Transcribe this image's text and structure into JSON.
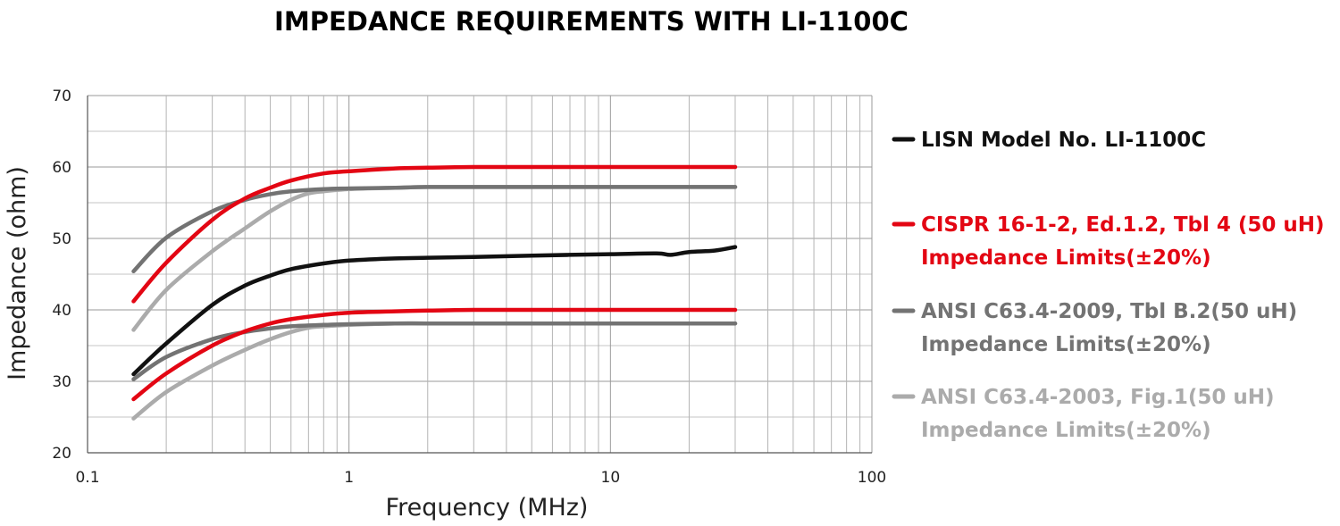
{
  "chart_data": {
    "type": "line",
    "title": "IMPEDANCE REQUIREMENTS WITH LI-1100C",
    "xlabel": "Frequency (MHz)",
    "ylabel": "Impedance (ohm)",
    "x_scale": "log",
    "xlim": [
      0.1,
      100
    ],
    "ylim": [
      20,
      70
    ],
    "x_ticks": [
      "0.1",
      "1",
      "10",
      "100"
    ],
    "y_ticks": [
      "20",
      "30",
      "40",
      "50",
      "60",
      "70"
    ],
    "grid": true,
    "legend_position": "right",
    "legend": [
      {
        "lines": [
          "LISN Model No. LI-1100C"
        ],
        "color": "#111111"
      },
      {
        "lines": [
          "CISPR 16-1-2, Ed.1.2, Tbl 4 (50 uH)",
          "Impedance Limits(±20%)"
        ],
        "color": "#e30613"
      },
      {
        "lines": [
          "ANSI C63.4-2009, Tbl B.2(50 uH)",
          "Impedance Limits(±20%)"
        ],
        "color": "#737373"
      },
      {
        "lines": [
          "ANSI C63.4-2003, Fig.1(50 uH)",
          "Impedance Limits(±20%)"
        ],
        "color": "#ababab"
      }
    ],
    "series": [
      {
        "group": 0,
        "color": "#111111",
        "x": [
          0.15,
          0.2,
          0.3,
          0.4,
          0.5,
          0.6,
          0.8,
          1,
          1.5,
          2,
          3,
          5,
          10,
          15,
          17,
          20,
          25,
          30
        ],
        "y": [
          31,
          35.3,
          40.7,
          43.4,
          44.8,
          45.7,
          46.5,
          46.9,
          47.2,
          47.3,
          47.4,
          47.6,
          47.8,
          47.9,
          47.7,
          48.1,
          48.3,
          48.8
        ]
      },
      {
        "group": 1,
        "color": "#e30613",
        "x": [
          0.15,
          0.2,
          0.3,
          0.4,
          0.5,
          0.6,
          0.8,
          1,
          1.5,
          2,
          3,
          5,
          10,
          30
        ],
        "y": [
          41.2,
          46.6,
          52.6,
          55.6,
          57.1,
          58.1,
          59.1,
          59.4,
          59.8,
          59.9,
          60,
          60,
          60,
          60
        ]
      },
      {
        "group": 1,
        "color": "#e30613",
        "x": [
          0.15,
          0.2,
          0.3,
          0.4,
          0.5,
          0.6,
          0.8,
          1,
          1.5,
          2,
          3,
          5,
          10,
          30
        ],
        "y": [
          27.5,
          31.1,
          35,
          37,
          38.1,
          38.7,
          39.3,
          39.6,
          39.8,
          39.9,
          40,
          40,
          40,
          40
        ]
      },
      {
        "group": 2,
        "color": "#737373",
        "x": [
          0.15,
          0.2,
          0.3,
          0.4,
          0.5,
          0.6,
          0.8,
          1,
          1.5,
          2,
          3,
          5,
          10,
          30
        ],
        "y": [
          45.4,
          50.1,
          53.8,
          55.4,
          56.2,
          56.6,
          56.9,
          57,
          57.1,
          57.2,
          57.2,
          57.2,
          57.2,
          57.2
        ]
      },
      {
        "group": 2,
        "color": "#737373",
        "x": [
          0.15,
          0.2,
          0.3,
          0.4,
          0.5,
          0.6,
          0.8,
          1,
          1.5,
          2,
          3,
          5,
          10,
          30
        ],
        "y": [
          30.3,
          33.4,
          35.9,
          36.9,
          37.4,
          37.7,
          37.9,
          38,
          38.1,
          38.1,
          38.1,
          38.1,
          38.1,
          38.1
        ]
      },
      {
        "group": 3,
        "color": "#ababab",
        "x": [
          0.15,
          0.2,
          0.3,
          0.4,
          0.5,
          0.6,
          0.7,
          0.8,
          1,
          1.5,
          2,
          3,
          5,
          10,
          30
        ],
        "y": [
          37.2,
          42.8,
          48.2,
          51.4,
          53.8,
          55.4,
          56.3,
          56.6,
          56.9,
          57.1,
          57.2,
          57.2,
          57.2,
          57.2,
          57.2
        ]
      },
      {
        "group": 3,
        "color": "#ababab",
        "x": [
          0.15,
          0.2,
          0.3,
          0.4,
          0.5,
          0.6,
          0.7,
          0.8,
          1,
          1.5,
          2,
          3,
          5,
          10,
          30
        ],
        "y": [
          24.8,
          28.5,
          32.2,
          34.4,
          35.9,
          36.9,
          37.5,
          37.7,
          37.9,
          38.1,
          38.1,
          38.1,
          38.1,
          38.1,
          38.1
        ]
      }
    ]
  }
}
